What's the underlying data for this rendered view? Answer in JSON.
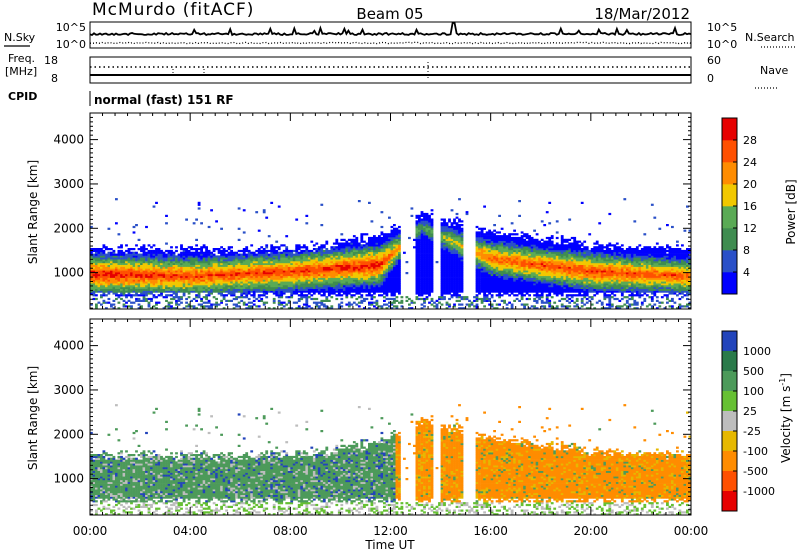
{
  "header": {
    "station": "McMurdo (fitACF)",
    "beam": "Beam 05",
    "date": "18/Mar/2012",
    "program": "normal (fast) 151 RF"
  },
  "aux_panels": {
    "nsky_label": "N.Sky",
    "nsky_ticks": [
      "10^5",
      "10^0"
    ],
    "nsearch_label": "N.Search",
    "nsearch_ticks": [
      "10^5",
      "10^0"
    ],
    "freq_label_1": "Freq.",
    "freq_label_2": "[MHz]",
    "freq_ticks": [
      "18",
      "8"
    ],
    "nave_label": "Nave",
    "nave_ticks": [
      "60",
      "0"
    ],
    "cpid_label": "CPID"
  },
  "axes": {
    "ylabel": "Slant Range [km]",
    "yticks": [
      "4000",
      "3000",
      "2000",
      "1000"
    ],
    "xlabel": "Time UT",
    "xticks": [
      "00:00",
      "04:00",
      "08:00",
      "12:00",
      "16:00",
      "20:00",
      "00:00"
    ]
  },
  "colorbars": {
    "power": {
      "label": "Power [dB]",
      "ticks": [
        "28",
        "24",
        "20",
        "16",
        "12",
        "8",
        "4"
      ],
      "colors": [
        "#0000ff",
        "#2a50c8",
        "#3f8c50",
        "#5aaa55",
        "#f2c800",
        "#ff8c00",
        "#ff5000",
        "#e60000"
      ]
    },
    "velocity": {
      "label": "Velocity [m s^-1]",
      "ticks": [
        "1000",
        "500",
        "100",
        "25",
        "-25",
        "-100",
        "-500",
        "-1000"
      ],
      "colors": [
        "#2244bb",
        "#2a7a4a",
        "#4c9a5a",
        "#66c033",
        "#bdbdbd",
        "#e6b800",
        "#ff8c00",
        "#ff5000",
        "#e60000"
      ]
    }
  },
  "chart_data": [
    {
      "type": "line",
      "title": "N.Sky / N.Search",
      "x_range_hours": [
        0,
        24
      ],
      "yscale": "log",
      "ylim": [
        "10^0",
        "10^5"
      ],
      "series": [
        {
          "name": "N.Sky",
          "style": "solid",
          "level": "~10^2.5 with spikes"
        },
        {
          "name": "N.Search",
          "style": "dotted",
          "level": "~10^1"
        }
      ]
    },
    {
      "type": "line",
      "title": "Freq. / Nave",
      "x_range_hours": [
        0,
        24
      ],
      "series": [
        {
          "name": "Freq. [MHz]",
          "ylim": [
            8,
            18
          ],
          "style": "solid"
        },
        {
          "name": "Nave",
          "ylim": [
            0,
            60
          ],
          "style": "dotted"
        }
      ]
    },
    {
      "type": "heatmap",
      "title": "Power [dB]",
      "xlabel": "Time UT",
      "ylabel": "Slant Range [km]",
      "x_range_hours": [
        0,
        24
      ],
      "ylim": [
        180,
        4600
      ],
      "colorbar_range": [
        0,
        30
      ],
      "colorbar_unit": "dB",
      "description_points": [
        {
          "t": 0.0,
          "core_km": 950,
          "top_km": 1500,
          "peak_db": 30
        },
        {
          "t": 4.0,
          "core_km": 900,
          "top_km": 1500,
          "peak_db": 28
        },
        {
          "t": 8.0,
          "core_km": 1000,
          "top_km": 1500,
          "peak_db": 28
        },
        {
          "t": 11.5,
          "core_km": 1150,
          "top_km": 1800,
          "peak_db": 30
        },
        {
          "t": 13.2,
          "core_km": 2000,
          "top_km": 2300,
          "peak_db": 12
        },
        {
          "t": 16.0,
          "core_km": 1300,
          "top_km": 1900,
          "peak_db": 26
        },
        {
          "t": 20.0,
          "core_km": 1000,
          "top_km": 1600,
          "peak_db": 28
        },
        {
          "t": 24.0,
          "core_km": 900,
          "top_km": 1500,
          "peak_db": 26
        }
      ]
    },
    {
      "type": "heatmap",
      "title": "Velocity",
      "xlabel": "Time UT",
      "ylabel": "Slant Range [km]",
      "x_range_hours": [
        0,
        24
      ],
      "ylim": [
        180,
        4600
      ],
      "colorbar_range": [
        -1000,
        1000
      ],
      "colorbar_unit": "m s^-1",
      "description_points": [
        {
          "t": 0.0,
          "dominant_velocity": 300
        },
        {
          "t": 6.0,
          "dominant_velocity": 200
        },
        {
          "t": 10.0,
          "dominant_velocity": 250
        },
        {
          "t": 13.0,
          "dominant_velocity": -150
        },
        {
          "t": 16.0,
          "dominant_velocity": -200
        },
        {
          "t": 22.0,
          "dominant_velocity": -200
        }
      ]
    }
  ]
}
